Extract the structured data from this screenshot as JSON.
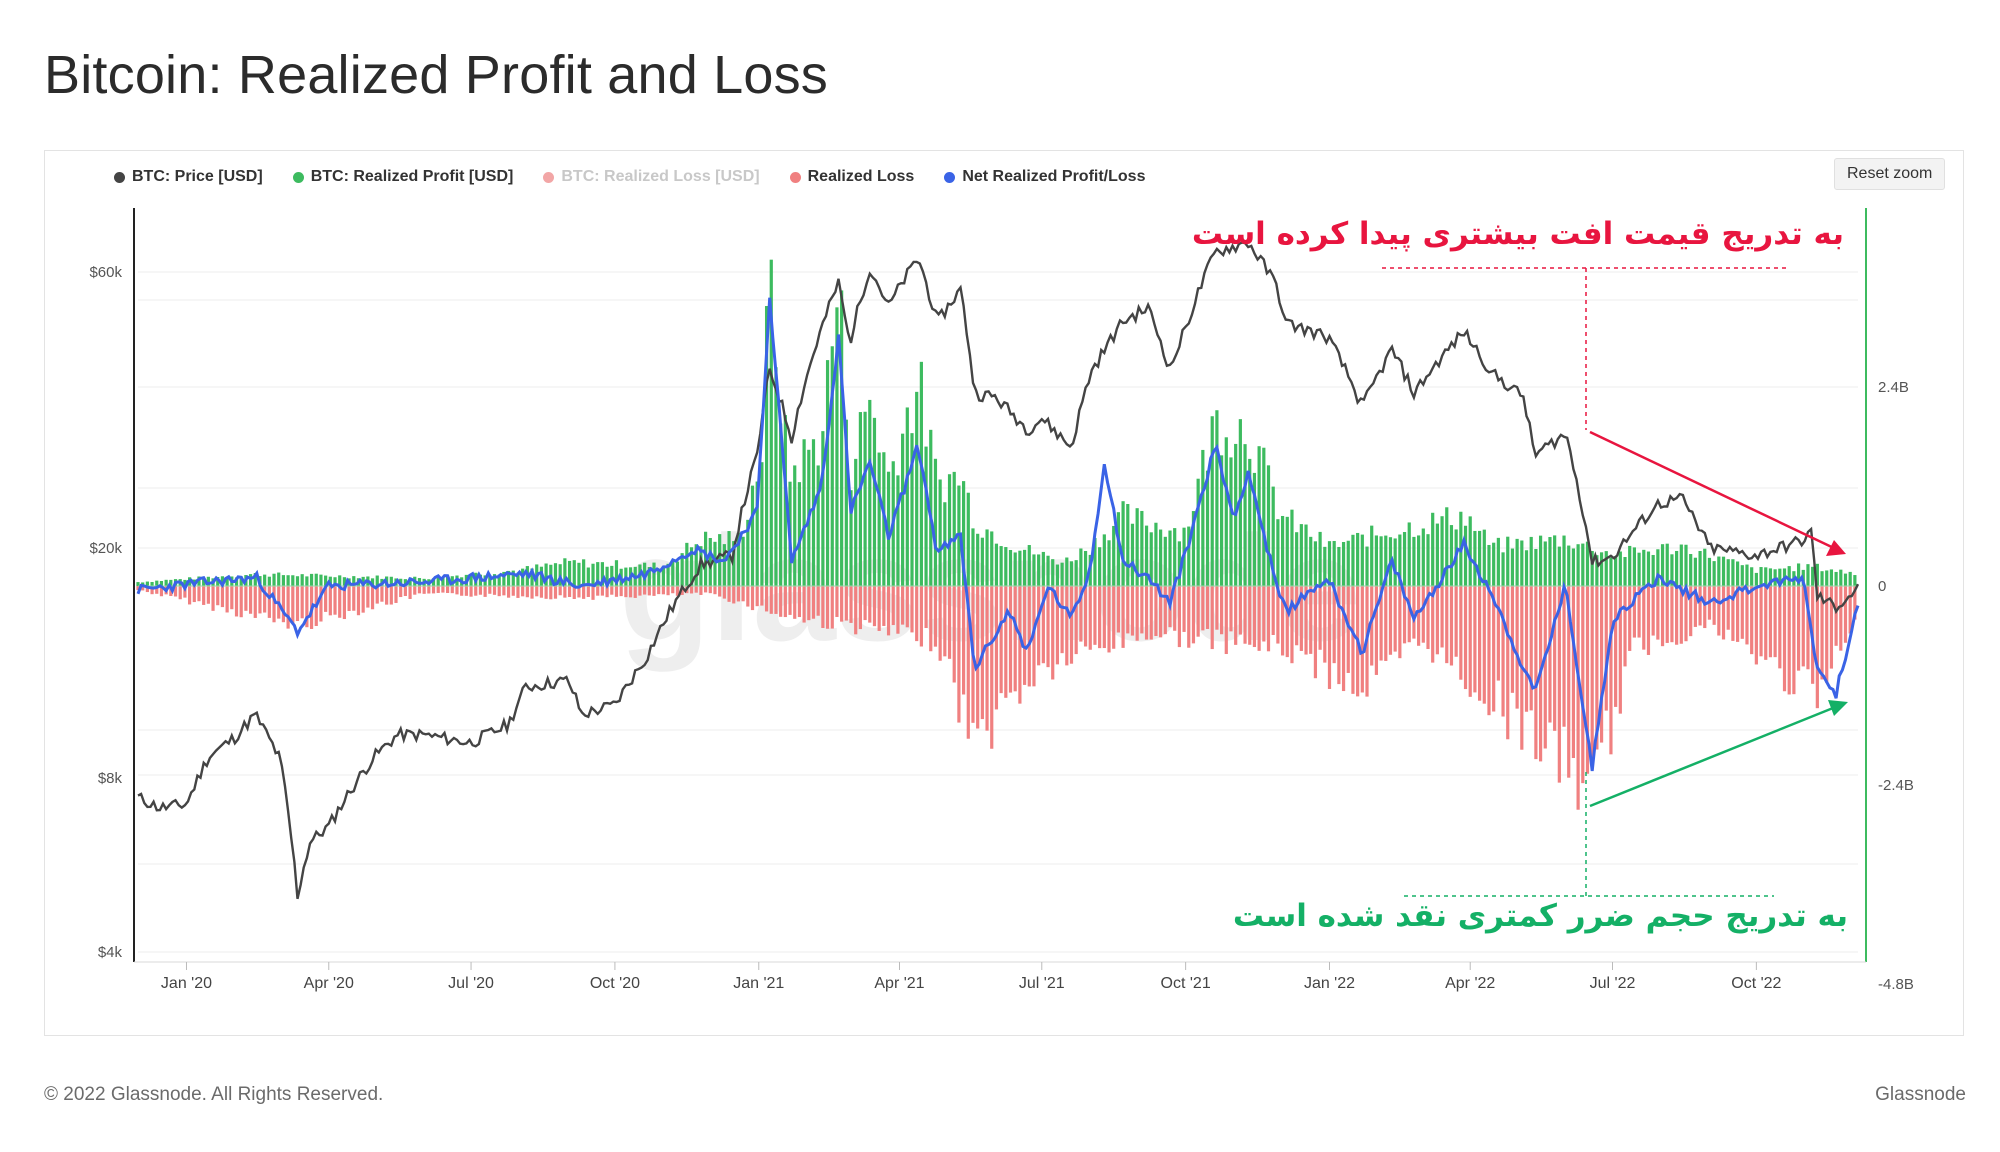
{
  "page": {
    "title": "Bitcoin: Realized Profit and Loss",
    "copyright": "© 2022 Glassnode. All Rights Reserved.",
    "brand": "Glassnode"
  },
  "toolbar": {
    "reset_zoom": "Reset zoom"
  },
  "legend": [
    {
      "label": "BTC: Price [USD]",
      "color": "#444444",
      "enabled": true
    },
    {
      "label": "BTC: Realized Profit [USD]",
      "color": "#3dbb5f",
      "enabled": true
    },
    {
      "label": "BTC: Realized Loss [USD]",
      "color": "#f2a6a6",
      "enabled": false
    },
    {
      "label": "Realized Loss",
      "color": "#f08080",
      "enabled": true
    },
    {
      "label": "Net Realized Profit/Loss",
      "color": "#3a63e6",
      "enabled": true
    }
  ],
  "annotations": {
    "top": {
      "text": "به تدریج قیمت افت بیشتری پیدا کرده است",
      "color": "#e8153f"
    },
    "bottom": {
      "text": "به تدریج حجم ضرر کمتری نقد شده است",
      "color": "#14b066"
    }
  },
  "watermark": "glassnode",
  "chart_data": {
    "type": "line",
    "title": "Bitcoin: Realized Profit and Loss",
    "x_ticks": [
      "Jan '20",
      "Apr '20",
      "Jul '20",
      "Oct '20",
      "Jan '21",
      "Apr '21",
      "Jul '21",
      "Oct '21",
      "Jan '22",
      "Apr '22",
      "Jul '22",
      "Oct '22"
    ],
    "left_axis": {
      "scale": "log",
      "ticks": [
        "$4k",
        "$8k",
        "$20k",
        "$60k"
      ],
      "tick_values": [
        4000,
        8000,
        20000,
        60000
      ]
    },
    "right_axis": {
      "ticks": [
        "-4.8B",
        "-2.4B",
        "0",
        "2.4B"
      ],
      "tick_values": [
        -4.8,
        -2.4,
        0,
        2.4
      ],
      "unit": "B USD"
    },
    "x_range": [
      "2019-12-01",
      "2022-12-05"
    ],
    "grid": true,
    "legend_position": "top-left",
    "series": [
      {
        "name": "BTC: Price [USD]",
        "axis": "left",
        "color": "#444444",
        "points": [
          [
            "2019-12-01",
            7400
          ],
          [
            "2019-12-15",
            7100
          ],
          [
            "2020-01-01",
            7200
          ],
          [
            "2020-01-15",
            8700
          ],
          [
            "2020-02-01",
            9400
          ],
          [
            "2020-02-14",
            10300
          ],
          [
            "2020-03-01",
            8600
          ],
          [
            "2020-03-12",
            5000
          ],
          [
            "2020-03-20",
            6200
          ],
          [
            "2020-04-01",
            6600
          ],
          [
            "2020-04-30",
            8700
          ],
          [
            "2020-05-15",
            9500
          ],
          [
            "2020-06-01",
            9500
          ],
          [
            "2020-07-01",
            9200
          ],
          [
            "2020-07-25",
            9900
          ],
          [
            "2020-08-05",
            11500
          ],
          [
            "2020-09-01",
            11800
          ],
          [
            "2020-09-10",
            10300
          ],
          [
            "2020-10-01",
            10700
          ],
          [
            "2020-10-21",
            12900
          ],
          [
            "2020-11-05",
            15500
          ],
          [
            "2020-11-25",
            18700
          ],
          [
            "2020-12-15",
            19400
          ],
          [
            "2020-12-31",
            28900
          ],
          [
            "2021-01-08",
            40700
          ],
          [
            "2021-01-22",
            31000
          ],
          [
            "2021-02-08",
            46000
          ],
          [
            "2021-02-21",
            57500
          ],
          [
            "2021-02-28",
            45000
          ],
          [
            "2021-03-13",
            61000
          ],
          [
            "2021-03-25",
            52300
          ],
          [
            "2021-04-13",
            63500
          ],
          [
            "2021-04-25",
            49000
          ],
          [
            "2021-05-10",
            56000
          ],
          [
            "2021-05-19",
            37000
          ],
          [
            "2021-06-01",
            36500
          ],
          [
            "2021-06-22",
            32000
          ],
          [
            "2021-07-01",
            33500
          ],
          [
            "2021-07-20",
            29800
          ],
          [
            "2021-08-01",
            40000
          ],
          [
            "2021-08-22",
            49300
          ],
          [
            "2021-09-07",
            52000
          ],
          [
            "2021-09-21",
            40700
          ],
          [
            "2021-10-01",
            48000
          ],
          [
            "2021-10-20",
            65000
          ],
          [
            "2021-11-10",
            67500
          ],
          [
            "2021-11-28",
            57000
          ],
          [
            "2021-12-04",
            49000
          ],
          [
            "2021-12-31",
            46300
          ],
          [
            "2022-01-22",
            35000
          ],
          [
            "2022-02-10",
            44000
          ],
          [
            "2022-02-24",
            37000
          ],
          [
            "2022-03-28",
            47300
          ],
          [
            "2022-04-15",
            40000
          ],
          [
            "2022-05-05",
            36500
          ],
          [
            "2022-05-12",
            28900
          ],
          [
            "2022-06-01",
            31500
          ],
          [
            "2022-06-13",
            22500
          ],
          [
            "2022-06-18",
            18900
          ],
          [
            "2022-07-01",
            19300
          ],
          [
            "2022-07-30",
            23800
          ],
          [
            "2022-08-14",
            24400
          ],
          [
            "2022-09-01",
            20000
          ],
          [
            "2022-10-01",
            19400
          ],
          [
            "2022-10-31",
            20600
          ],
          [
            "2022-11-05",
            21300
          ],
          [
            "2022-11-09",
            16500
          ],
          [
            "2022-11-21",
            15800
          ],
          [
            "2022-12-05",
            17000
          ]
        ]
      },
      {
        "name": "BTC: Realized Profit [USD]",
        "axis": "right",
        "color": "#3dbb5f",
        "points": [
          [
            "2019-12-01",
            0.05
          ],
          [
            "2020-02-15",
            0.15
          ],
          [
            "2020-06-01",
            0.1
          ],
          [
            "2020-08-01",
            0.2
          ],
          [
            "2020-09-01",
            0.3
          ],
          [
            "2020-11-01",
            0.25
          ],
          [
            "2020-11-25",
            0.6
          ],
          [
            "2020-12-20",
            0.6
          ],
          [
            "2021-01-03",
            1.7
          ],
          [
            "2021-01-08",
            3.9
          ],
          [
            "2021-01-20",
            1.4
          ],
          [
            "2021-02-10",
            1.9
          ],
          [
            "2021-02-21",
            3.8
          ],
          [
            "2021-03-01",
            1.5
          ],
          [
            "2021-03-13",
            2.4
          ],
          [
            "2021-03-25",
            1.4
          ],
          [
            "2021-04-13",
            2.6
          ],
          [
            "2021-04-25",
            1.3
          ],
          [
            "2021-05-10",
            1.4
          ],
          [
            "2021-05-20",
            0.8
          ],
          [
            "2021-06-15",
            0.5
          ],
          [
            "2021-07-15",
            0.3
          ],
          [
            "2021-08-01",
            0.5
          ],
          [
            "2021-08-22",
            0.9
          ],
          [
            "2021-09-07",
            0.8
          ],
          [
            "2021-10-01",
            0.7
          ],
          [
            "2021-10-20",
            2.1
          ],
          [
            "2021-11-10",
            2.0
          ],
          [
            "2021-12-01",
            0.9
          ],
          [
            "2022-01-01",
            0.5
          ],
          [
            "2022-02-10",
            0.7
          ],
          [
            "2022-03-28",
            0.9
          ],
          [
            "2022-04-15",
            0.5
          ],
          [
            "2022-06-01",
            0.6
          ],
          [
            "2022-07-01",
            0.4
          ],
          [
            "2022-08-15",
            0.5
          ],
          [
            "2022-10-01",
            0.2
          ],
          [
            "2022-11-05",
            0.25
          ],
          [
            "2022-12-05",
            0.15
          ]
        ]
      },
      {
        "name": "Realized Loss",
        "axis": "right",
        "color": "#f08080",
        "points": [
          [
            "2019-12-01",
            -0.05
          ],
          [
            "2020-03-12",
            -0.5
          ],
          [
            "2020-06-01",
            -0.1
          ],
          [
            "2020-09-10",
            -0.15
          ],
          [
            "2020-12-01",
            -0.1
          ],
          [
            "2021-01-22",
            -0.4
          ],
          [
            "2021-03-01",
            -0.5
          ],
          [
            "2021-04-25",
            -0.7
          ],
          [
            "2021-05-19",
            -2.0
          ],
          [
            "2021-06-22",
            -1.2
          ],
          [
            "2021-07-20",
            -0.9
          ],
          [
            "2021-09-07",
            -0.6
          ],
          [
            "2021-12-04",
            -0.8
          ],
          [
            "2022-01-22",
            -1.3
          ],
          [
            "2022-03-01",
            -0.7
          ],
          [
            "2022-05-12",
            -1.9
          ],
          [
            "2022-06-18",
            -2.6
          ],
          [
            "2022-07-15",
            -0.8
          ],
          [
            "2022-09-01",
            -0.5
          ],
          [
            "2022-11-09",
            -1.4
          ],
          [
            "2022-12-05",
            -0.4
          ]
        ]
      },
      {
        "name": "Net Realized Profit/Loss",
        "axis": "right",
        "color": "#3a63e6",
        "points": [
          [
            "2019-12-01",
            -0.05
          ],
          [
            "2020-01-15",
            0.05
          ],
          [
            "2020-02-15",
            0.1
          ],
          [
            "2020-03-12",
            -0.55
          ],
          [
            "2020-04-01",
            0.0
          ],
          [
            "2020-06-01",
            0.05
          ],
          [
            "2020-08-05",
            0.15
          ],
          [
            "2020-09-10",
            0.0
          ],
          [
            "2020-10-21",
            0.15
          ],
          [
            "2020-11-20",
            0.45
          ],
          [
            "2020-12-10",
            0.3
          ],
          [
            "2020-12-31",
            0.9
          ],
          [
            "2021-01-08",
            3.5
          ],
          [
            "2021-01-22",
            0.3
          ],
          [
            "2021-02-10",
            1.2
          ],
          [
            "2021-02-21",
            3.0
          ],
          [
            "2021-03-01",
            0.9
          ],
          [
            "2021-03-13",
            1.5
          ],
          [
            "2021-03-25",
            0.6
          ],
          [
            "2021-04-13",
            1.7
          ],
          [
            "2021-04-25",
            0.4
          ],
          [
            "2021-05-10",
            0.6
          ],
          [
            "2021-05-19",
            -1.0
          ],
          [
            "2021-06-10",
            -0.3
          ],
          [
            "2021-06-22",
            -0.8
          ],
          [
            "2021-07-05",
            0.0
          ],
          [
            "2021-07-20",
            -0.4
          ],
          [
            "2021-08-01",
            0.2
          ],
          [
            "2021-08-10",
            1.5
          ],
          [
            "2021-08-22",
            0.3
          ],
          [
            "2021-09-07",
            0.1
          ],
          [
            "2021-09-21",
            -0.2
          ],
          [
            "2021-10-01",
            0.4
          ],
          [
            "2021-10-20",
            1.7
          ],
          [
            "2021-11-01",
            0.8
          ],
          [
            "2021-11-10",
            1.4
          ],
          [
            "2021-11-28",
            0.0
          ],
          [
            "2021-12-04",
            -0.3
          ],
          [
            "2021-12-31",
            0.1
          ],
          [
            "2022-01-22",
            -0.8
          ],
          [
            "2022-02-10",
            0.3
          ],
          [
            "2022-02-24",
            -0.4
          ],
          [
            "2022-03-28",
            0.5
          ],
          [
            "2022-04-15",
            -0.1
          ],
          [
            "2022-05-12",
            -1.3
          ],
          [
            "2022-06-01",
            0.0
          ],
          [
            "2022-06-18",
            -2.2
          ],
          [
            "2022-07-01",
            -0.4
          ],
          [
            "2022-07-30",
            0.1
          ],
          [
            "2022-09-01",
            -0.2
          ],
          [
            "2022-10-01",
            0.0
          ],
          [
            "2022-10-31",
            0.1
          ],
          [
            "2022-11-09",
            -1.0
          ],
          [
            "2022-11-21",
            -1.3
          ],
          [
            "2022-12-05",
            -0.2
          ]
        ]
      }
    ]
  }
}
